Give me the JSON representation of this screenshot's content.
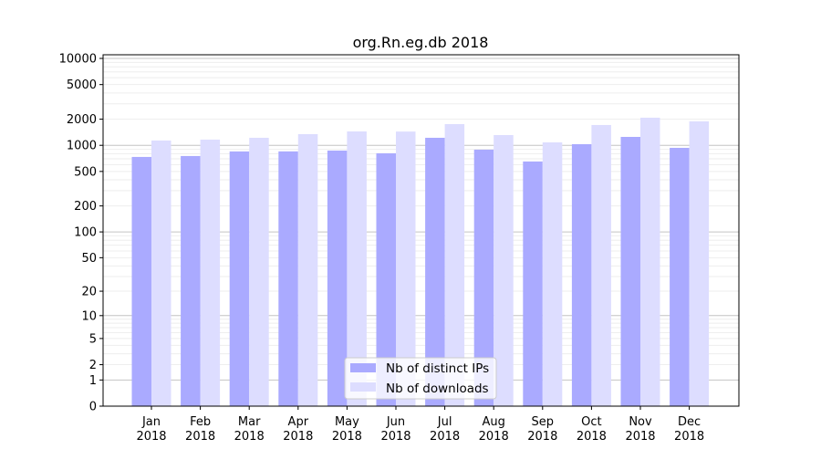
{
  "chart_data": {
    "type": "bar",
    "title": "org.Rn.eg.db 2018",
    "xlabel": "",
    "ylabel": "",
    "yscale": "log10(1+y)",
    "ylim": [
      0,
      10000
    ],
    "yticks": [
      0,
      1,
      2,
      5,
      10,
      20,
      50,
      100,
      200,
      500,
      1000,
      2000,
      5000,
      10000
    ],
    "grid": true,
    "legend_position": "bottom-center",
    "categories": [
      "Jan\n2018",
      "Feb\n2018",
      "Mar\n2018",
      "Apr\n2018",
      "May\n2018",
      "Jun\n2018",
      "Jul\n2018",
      "Aug\n2018",
      "Sep\n2018",
      "Oct\n2018",
      "Nov\n2018",
      "Dec\n2018"
    ],
    "series": [
      {
        "name": "Nb of distinct IPs",
        "color": "#aaaaff",
        "values": [
          735,
          753,
          850,
          851,
          870,
          809,
          1221,
          891,
          651,
          1030,
          1250,
          935
        ]
      },
      {
        "name": "Nb of downloads",
        "color": "#ddddff",
        "values": [
          1136,
          1163,
          1221,
          1345,
          1445,
          1440,
          1754,
          1313,
          1082,
          1713,
          2079,
          1887
        ]
      }
    ]
  }
}
